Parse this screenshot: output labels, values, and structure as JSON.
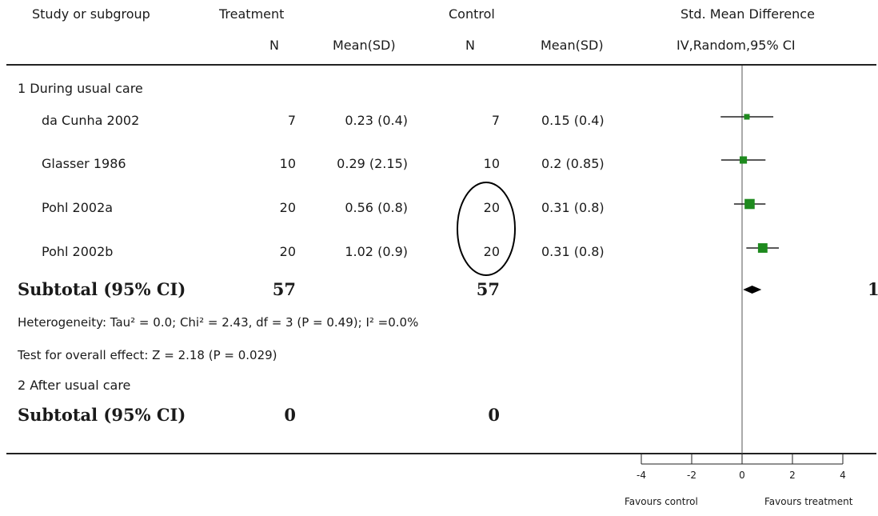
{
  "header": {
    "study_label": "Study or subgroup",
    "treatment_label": "Treatment",
    "control_label": "Control",
    "effect_label": "Std. Mean Difference",
    "n_label": "N",
    "mean_sd_label": "Mean(SD)",
    "method_label": "IV,Random,95% CI"
  },
  "groups": [
    {
      "title": "1 During usual care",
      "studies": [
        {
          "name": "da Cunha 2002",
          "t_n": "7",
          "t_mean_sd": "0.23 (0.4)",
          "c_n": "7",
          "c_mean_sd": "0.15 (0.4)"
        },
        {
          "name": "Glasser 1986",
          "t_n": "10",
          "t_mean_sd": "0.29 (2.15)",
          "c_n": "10",
          "c_mean_sd": "0.2 (0.85)"
        },
        {
          "name": "Pohl 2002a",
          "t_n": "20",
          "t_mean_sd": "0.56 (0.8)",
          "c_n": "20",
          "c_mean_sd": "0.31 (0.8)"
        },
        {
          "name": "Pohl 2002b",
          "t_n": "20",
          "t_mean_sd": "1.02 (0.9)",
          "c_n": "20",
          "c_mean_sd": "0.31 (0.8)"
        }
      ],
      "subtotal": {
        "label": "Subtotal (95% CI)",
        "t_n": "57",
        "c_n": "57",
        "right_text": "1"
      },
      "heterogeneity": "Heterogeneity: Tau² = 0.0; Chi² = 2.43, df = 3 (P = 0.49); I² =0.0%",
      "overall": "Test for overall effect: Z = 2.18 (P = 0.029)"
    },
    {
      "title": "2 After usual care",
      "studies": [],
      "subtotal": {
        "label": "Subtotal (95% CI)",
        "t_n": "0",
        "c_n": "0"
      }
    }
  ],
  "footer": {
    "favours_left": "Favours control",
    "favours_right": "Favours treatment"
  },
  "colors": {
    "marker": "#1e8a1e",
    "line": "#222222",
    "annotation": "#000000"
  },
  "chart_data": {
    "type": "scatter",
    "subtype": "forest-plot",
    "x_ticks": [
      "-4",
      "-2",
      "0",
      "2",
      "4"
    ],
    "xlim": [
      -4,
      4
    ],
    "reference_line": 0,
    "studies": [
      {
        "name": "da Cunha 2002",
        "estimate": 0.19,
        "ci": [
          -0.85,
          1.24
        ],
        "weight": 1
      },
      {
        "name": "Glasser 1986",
        "estimate": 0.05,
        "ci": [
          -0.83,
          0.93
        ],
        "weight": 1.3
      },
      {
        "name": "Pohl 2002a",
        "estimate": 0.3,
        "ci": [
          -0.32,
          0.93
        ],
        "weight": 1.8
      },
      {
        "name": "Pohl 2002b",
        "estimate": 0.82,
        "ci": [
          0.17,
          1.46
        ],
        "weight": 1.7
      }
    ],
    "pooled": {
      "estimate": 0.4,
      "ci": [
        0.04,
        0.77
      ]
    },
    "annotation": "circle around Control N values of Pohl 2002a and Pohl 2002b"
  }
}
